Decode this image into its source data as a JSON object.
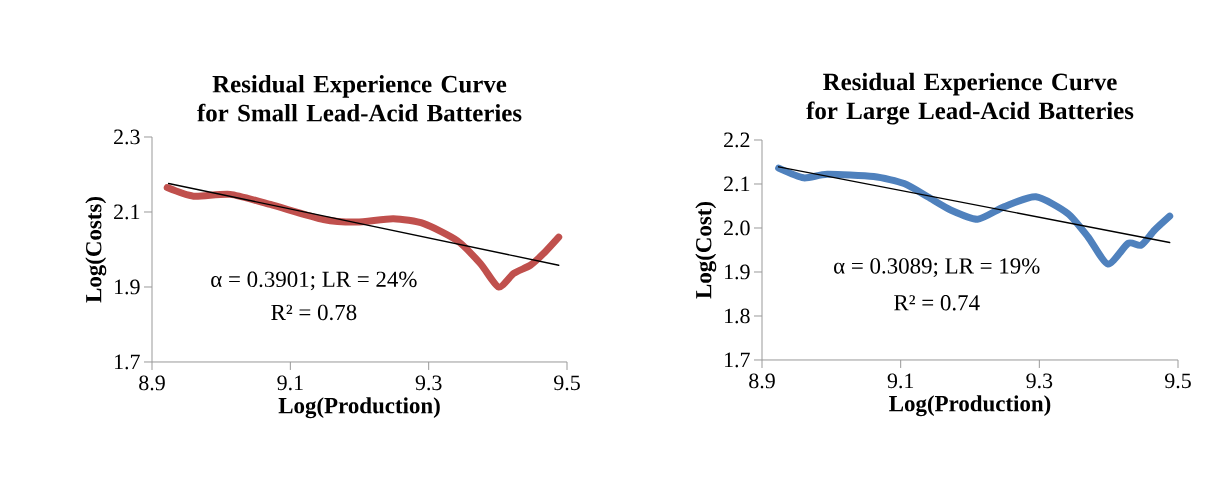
{
  "chart_data": [
    {
      "type": "line",
      "title": "Residual Experience Curve for Small Lead-Acid Batteries",
      "xlabel": "Log(Production)",
      "ylabel": "Log(Costs)",
      "xlim": [
        8.9,
        9.5
      ],
      "xticks": [
        8.9,
        9.1,
        9.3,
        9.5
      ],
      "ylim": [
        1.7,
        2.3
      ],
      "yticks": [
        1.7,
        1.9,
        2.1,
        2.3
      ],
      "marker": "none",
      "series": [
        {
          "color": "#c0504d",
          "x": [
            8.922,
            8.96,
            9.013,
            9.071,
            9.148,
            9.196,
            9.249,
            9.293,
            9.341,
            9.375,
            9.401,
            9.423,
            9.447,
            9.466,
            9.488
          ],
          "values": [
            2.165,
            2.142,
            2.147,
            2.12,
            2.08,
            2.073,
            2.082,
            2.069,
            2.024,
            1.962,
            1.9,
            1.936,
            1.958,
            1.989,
            2.033
          ]
        },
        {
          "type": "line",
          "color": "#000000",
          "x": [
            8.924,
            9.488
          ],
          "values": [
            2.176,
            1.958
          ]
        }
      ],
      "annotations": [
        "α = 0.3901; LR = 24%",
        "R² = 0.78"
      ]
    },
    {
      "type": "line",
      "title": "Residual Experience Curve for Large Lead-Acid Batteries",
      "xlabel": "Log(Production)",
      "ylabel": "Log(Cost)",
      "xlim": [
        8.9,
        9.5
      ],
      "xticks": [
        8.9,
        9.1,
        9.3,
        9.5
      ],
      "ylim": [
        1.7,
        2.2
      ],
      "yticks": [
        1.7,
        1.8,
        1.9,
        {
          "value": 2.0,
          "label": "2.0"
        },
        2.1,
        2.2
      ],
      "marker": "none",
      "series": [
        {
          "color": "#4f81bd",
          "x": [
            8.924,
            8.96,
            8.994,
            9.061,
            9.105,
            9.139,
            9.172,
            9.211,
            9.249,
            9.295,
            9.341,
            9.37,
            9.399,
            9.428,
            9.447,
            9.466,
            9.488
          ],
          "values": [
            2.136,
            2.114,
            2.122,
            2.117,
            2.101,
            2.071,
            2.041,
            2.02,
            2.048,
            2.071,
            2.033,
            1.98,
            1.918,
            1.965,
            1.961,
            1.995,
            2.027
          ]
        },
        {
          "type": "line",
          "color": "#000000",
          "x": [
            8.924,
            9.488
          ],
          "values": [
            2.139,
            1.967
          ]
        }
      ],
      "annotations": [
        "α = 0.3089; LR = 19%",
        "R² = 0.74"
      ]
    }
  ]
}
